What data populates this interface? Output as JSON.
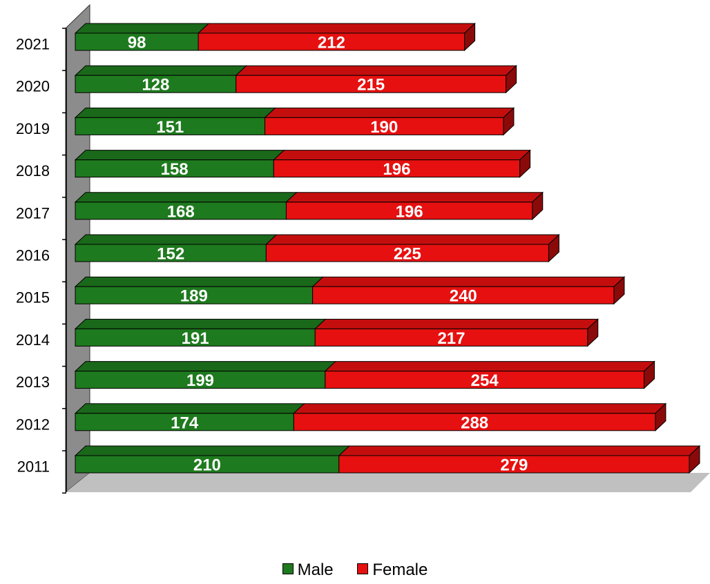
{
  "chart_data": {
    "type": "bar",
    "orientation": "horizontal",
    "stacked": true,
    "three_d": true,
    "categories": [
      "2011",
      "2012",
      "2013",
      "2014",
      "2015",
      "2016",
      "2017",
      "2018",
      "2019",
      "2020",
      "2021"
    ],
    "series": [
      {
        "name": "Male",
        "color": "#1e7a1e",
        "values": [
          210,
          174,
          199,
          191,
          189,
          152,
          168,
          158,
          151,
          128,
          98
        ]
      },
      {
        "name": "Female",
        "color": "#e61010",
        "values": [
          279,
          288,
          254,
          217,
          240,
          225,
          196,
          196,
          190,
          215,
          212
        ]
      }
    ],
    "xlim": [
      0,
      489
    ],
    "grid": false,
    "legend_position": "bottom"
  }
}
